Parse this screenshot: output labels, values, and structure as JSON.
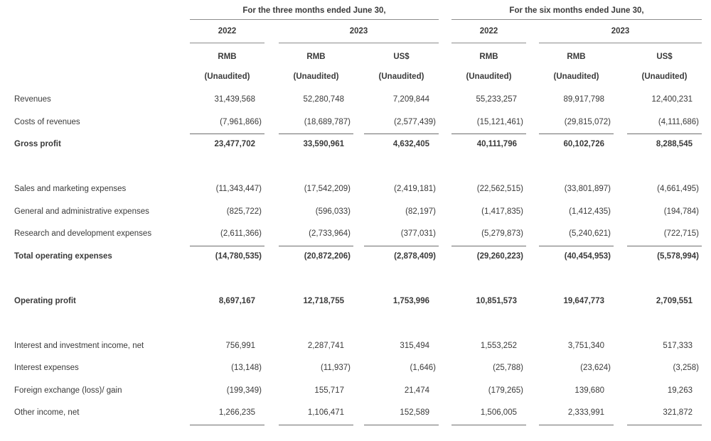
{
  "header": {
    "groups": [
      {
        "title": "For the three months ended June 30,"
      },
      {
        "title": "For the six months ended June 30,"
      }
    ],
    "years": [
      "2022",
      "2023",
      "2022",
      "2023"
    ],
    "currencies": [
      "RMB",
      "RMB",
      "US$",
      "RMB",
      "RMB",
      "US$"
    ],
    "audit_labels": [
      "(Unaudited)",
      "(Unaudited)",
      "(Unaudited)",
      "(Unaudited)",
      "(Unaudited)",
      "(Unaudited)"
    ]
  },
  "rows": [
    {
      "label": "Revenues",
      "bold": false,
      "rule_below": false,
      "values": [
        "31,439,568",
        "52,280,748",
        "7,209,844",
        "55,233,257",
        "89,917,798",
        "12,400,231"
      ]
    },
    {
      "label": "Costs of revenues",
      "bold": false,
      "rule_below": true,
      "values": [
        "(7,961,866)",
        "(18,689,787)",
        "(2,577,439)",
        "(15,121,461)",
        "(29,815,072)",
        "(4,111,686)"
      ]
    },
    {
      "label": "Gross profit",
      "bold": true,
      "rule_below": false,
      "values": [
        "23,477,702",
        "33,590,961",
        "4,632,405",
        "40,111,796",
        "60,102,726",
        "8,288,545"
      ]
    },
    {
      "spacer": true
    },
    {
      "label": "Sales and marketing expenses",
      "bold": false,
      "rule_below": false,
      "values": [
        "(11,343,447)",
        "(17,542,209)",
        "(2,419,181)",
        "(22,562,515)",
        "(33,801,897)",
        "(4,661,495)"
      ]
    },
    {
      "label": "General and administrative expenses",
      "bold": false,
      "rule_below": false,
      "values": [
        "(825,722)",
        "(596,033)",
        "(82,197)",
        "(1,417,835)",
        "(1,412,435)",
        "(194,784)"
      ]
    },
    {
      "label": "Research and development expenses",
      "bold": false,
      "rule_below": true,
      "values": [
        "(2,611,366)",
        "(2,733,964)",
        "(377,031)",
        "(5,279,873)",
        "(5,240,621)",
        "(722,715)"
      ]
    },
    {
      "label": "Total operating expenses",
      "bold": true,
      "rule_below": false,
      "values": [
        "(14,780,535)",
        "(20,872,206)",
        "(2,878,409)",
        "(29,260,223)",
        "(40,454,953)",
        "(5,578,994)"
      ]
    },
    {
      "spacer": true
    },
    {
      "label": "Operating profit",
      "bold": true,
      "rule_below": false,
      "values": [
        "8,697,167",
        "12,718,755",
        "1,753,996",
        "10,851,573",
        "19,647,773",
        "2,709,551"
      ]
    },
    {
      "spacer": true
    },
    {
      "label": "Interest and investment income, net",
      "bold": false,
      "rule_below": false,
      "values": [
        "756,991",
        "2,287,741",
        "315,494",
        "1,553,252",
        "3,751,340",
        "517,333"
      ]
    },
    {
      "label": "Interest expenses",
      "bold": false,
      "rule_below": false,
      "values": [
        "(13,148)",
        "(11,937)",
        "(1,646)",
        "(25,788)",
        "(23,624)",
        "(3,258)"
      ]
    },
    {
      "label": "Foreign exchange (loss)/ gain",
      "bold": false,
      "rule_below": false,
      "values": [
        "(199,349)",
        "155,717",
        "21,474",
        "(179,265)",
        "139,680",
        "19,263"
      ]
    },
    {
      "label": "Other income, net",
      "bold": false,
      "rule_below": true,
      "values": [
        "1,266,235",
        "1,106,471",
        "152,589",
        "1,506,005",
        "2,333,991",
        "321,872"
      ]
    }
  ]
}
